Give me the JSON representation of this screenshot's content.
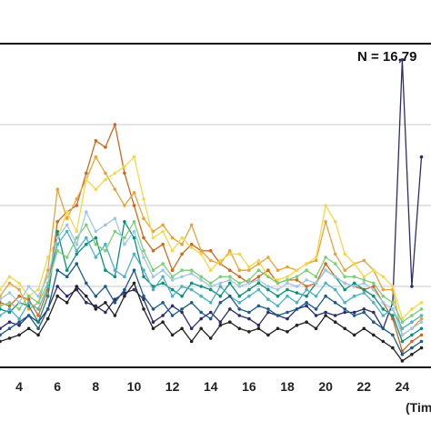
{
  "chart_data": {
    "type": "line",
    "annotation": "N = 16,79",
    "x_unit_label": "(Tim",
    "x_ticks": [
      4,
      6,
      8,
      10,
      12,
      14,
      16,
      18,
      20,
      22,
      24
    ],
    "xlim": [
      3,
      25.5
    ],
    "ylim": [
      0,
      100
    ],
    "grid": true,
    "x": [
      3,
      3.5,
      4,
      4.5,
      5,
      5.5,
      6,
      6.5,
      7,
      7.5,
      8,
      8.5,
      9,
      9.5,
      10,
      10.5,
      11,
      11.5,
      12,
      12.5,
      13,
      13.5,
      14,
      14.5,
      15,
      15.5,
      16,
      16.5,
      17,
      17.5,
      18,
      18.5,
      19,
      19.5,
      20,
      20.5,
      21,
      21.5,
      22,
      22.5,
      23,
      23.5,
      24,
      24.5,
      25
    ],
    "series": [
      {
        "color": "#2b2d6e",
        "values": [
          12,
          14,
          13,
          16,
          14,
          18,
          25,
          22,
          24,
          20,
          19,
          17,
          21,
          23,
          24,
          21,
          14,
          16,
          19,
          17,
          12,
          15,
          17,
          14,
          18,
          16,
          15,
          13,
          17,
          16,
          15,
          18,
          19,
          16,
          17,
          16,
          17,
          17,
          18,
          17,
          12,
          20,
          95,
          25,
          65
        ]
      },
      {
        "color": "#d0671c",
        "values": [
          20,
          19,
          22,
          21,
          16,
          24,
          45,
          48,
          50,
          60,
          70,
          68,
          75,
          60,
          50,
          40,
          36,
          38,
          30,
          35,
          38,
          36,
          36,
          32,
          30,
          28,
          26,
          28,
          30,
          26,
          27,
          27,
          25,
          26,
          32,
          28,
          26,
          25,
          24,
          25,
          20,
          15,
          5,
          8,
          10
        ]
      },
      {
        "color": "#e8a33a",
        "values": [
          22,
          26,
          24,
          18,
          20,
          30,
          55,
          46,
          52,
          58,
          65,
          60,
          55,
          50,
          54,
          46,
          42,
          44,
          40,
          38,
          44,
          36,
          33,
          32,
          36,
          30,
          30,
          32,
          34,
          30,
          31,
          30,
          32,
          33,
          45,
          35,
          30,
          32,
          33,
          30,
          24,
          24,
          10,
          12,
          15
        ]
      },
      {
        "color": "#f4d84a",
        "values": [
          24,
          28,
          26,
          22,
          24,
          34,
          40,
          48,
          42,
          58,
          55,
          58,
          60,
          62,
          65,
          52,
          40,
          42,
          36,
          40,
          37,
          35,
          30,
          33,
          35,
          35,
          31,
          33,
          28,
          27,
          28,
          30,
          32,
          34,
          50,
          45,
          35,
          32,
          28,
          30,
          28,
          25,
          15,
          18,
          20
        ]
      },
      {
        "color": "#0e8f7a",
        "values": [
          18,
          17,
          20,
          19,
          14,
          22,
          42,
          30,
          35,
          38,
          40,
          30,
          28,
          45,
          40,
          28,
          25,
          26,
          24,
          22,
          26,
          25,
          24,
          22,
          26,
          22,
          24,
          26,
          24,
          22,
          24,
          23,
          22,
          26,
          30,
          28,
          24,
          26,
          24,
          22,
          18,
          16,
          8,
          10,
          12
        ]
      },
      {
        "color": "#4fb0c6",
        "values": [
          16,
          18,
          15,
          20,
          18,
          25,
          38,
          42,
          36,
          40,
          34,
          38,
          30,
          28,
          35,
          30,
          24,
          28,
          22,
          25,
          24,
          22,
          20,
          25,
          22,
          20,
          22,
          24,
          21,
          19,
          22,
          20,
          24,
          22,
          26,
          24,
          20,
          22,
          23,
          20,
          16,
          18,
          12,
          14,
          16
        ]
      },
      {
        "color": "#1d5a8a",
        "values": [
          10,
          12,
          14,
          16,
          12,
          18,
          30,
          28,
          32,
          26,
          22,
          25,
          20,
          24,
          30,
          22,
          18,
          20,
          16,
          18,
          20,
          17,
          15,
          20,
          22,
          18,
          17,
          19,
          18,
          16,
          17,
          18,
          20,
          18,
          22,
          20,
          18,
          16,
          17,
          14,
          12,
          10,
          4,
          6,
          8
        ]
      },
      {
        "color": "#7ccf7a",
        "values": [
          19,
          20,
          18,
          22,
          20,
          26,
          36,
          34,
          40,
          44,
          38,
          36,
          42,
          40,
          45,
          36,
          30,
          32,
          28,
          30,
          30,
          28,
          26,
          28,
          28,
          26,
          27,
          30,
          28,
          26,
          27,
          28,
          30,
          28,
          34,
          32,
          28,
          28,
          27,
          26,
          22,
          20,
          14,
          16,
          18
        ]
      },
      {
        "color": "#9fc8e0",
        "values": [
          21,
          23,
          20,
          25,
          22,
          28,
          40,
          44,
          38,
          48,
          42,
          44,
          46,
          38,
          42,
          34,
          28,
          30,
          27,
          28,
          29,
          27,
          25,
          26,
          27,
          25,
          26,
          27,
          25,
          24,
          26,
          25,
          27,
          26,
          30,
          28,
          26,
          25,
          26,
          24,
          20,
          18,
          10,
          12,
          14
        ]
      },
      {
        "color": "#222222",
        "values": [
          8,
          9,
          10,
          12,
          10,
          15,
          22,
          20,
          25,
          22,
          18,
          20,
          16,
          22,
          26,
          18,
          12,
          14,
          10,
          12,
          8,
          12,
          9,
          13,
          14,
          12,
          11,
          12,
          10,
          12,
          11,
          13,
          14,
          12,
          16,
          14,
          12,
          10,
          12,
          10,
          8,
          6,
          2,
          4,
          6
        ]
      }
    ]
  }
}
